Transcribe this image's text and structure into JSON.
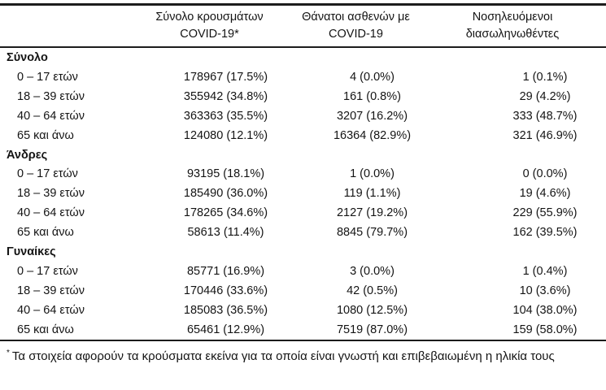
{
  "table": {
    "headers": [
      {
        "line1": "Σύνολο κρουσμάτων",
        "line2": "COVID-19*"
      },
      {
        "line1": "Θάνατοι ασθενών με",
        "line2": "COVID-19"
      },
      {
        "line1": "Νοσηλευόμενοι",
        "line2": "διασωληνωθέντες"
      }
    ],
    "groups": [
      {
        "label": "Σύνολο",
        "rows": [
          {
            "label": "0 – 17 ετών",
            "cases": "178967 (17.5%)",
            "deaths": "4 (0.0%)",
            "intubated": "1 (0.1%)"
          },
          {
            "label": "18 – 39 ετών",
            "cases": "355942 (34.8%)",
            "deaths": "161 (0.8%)",
            "intubated": "29 (4.2%)"
          },
          {
            "label": "40 – 64 ετών",
            "cases": "363363 (35.5%)",
            "deaths": "3207 (16.2%)",
            "intubated": "333 (48.7%)"
          },
          {
            "label": "65 και άνω",
            "cases": "124080 (12.1%)",
            "deaths": "16364 (82.9%)",
            "intubated": "321 (46.9%)"
          }
        ]
      },
      {
        "label": "Άνδρες",
        "rows": [
          {
            "label": "0 – 17 ετών",
            "cases": "93195 (18.1%)",
            "deaths": "1 (0.0%)",
            "intubated": "0 (0.0%)"
          },
          {
            "label": "18 – 39 ετών",
            "cases": "185490 (36.0%)",
            "deaths": "119 (1.1%)",
            "intubated": "19 (4.6%)"
          },
          {
            "label": "40 – 64 ετών",
            "cases": "178265 (34.6%)",
            "deaths": "2127 (19.2%)",
            "intubated": "229 (55.9%)"
          },
          {
            "label": "65 και άνω",
            "cases": "58613 (11.4%)",
            "deaths": "8845 (79.7%)",
            "intubated": "162 (39.5%)"
          }
        ]
      },
      {
        "label": "Γυναίκες",
        "rows": [
          {
            "label": "0 – 17 ετών",
            "cases": "85771 (16.9%)",
            "deaths": "3 (0.0%)",
            "intubated": "1 (0.4%)"
          },
          {
            "label": "18 – 39 ετών",
            "cases": "170446 (33.6%)",
            "deaths": "42 (0.5%)",
            "intubated": "10 (3.6%)"
          },
          {
            "label": "40 – 64 ετών",
            "cases": "185083 (36.5%)",
            "deaths": "1080 (12.5%)",
            "intubated": "104 (38.0%)"
          },
          {
            "label": "65 και άνω",
            "cases": "65461 (12.9%)",
            "deaths": "7519 (87.0%)",
            "intubated": "159 (58.0%)"
          }
        ]
      }
    ],
    "footnote": {
      "marker": "*",
      "text": "Τα στοιχεία αφορούν τα κρούσματα εκείνα για τα οποία είναι γνωστή και επιβεβαιωμένη η ηλικία τους"
    }
  },
  "colors": {
    "text": "#141414",
    "rule": "#1c1c1c",
    "background": "#ffffff"
  }
}
